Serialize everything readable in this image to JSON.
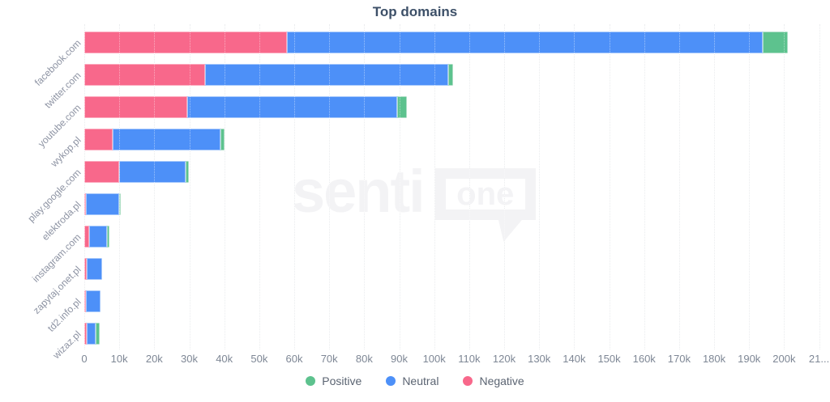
{
  "title": "Top domains",
  "watermark": {
    "senti": "senti",
    "one": "one"
  },
  "legend": [
    {
      "label": "Positive",
      "color": "#5dc28e"
    },
    {
      "label": "Neutral",
      "color": "#4d90f8"
    },
    {
      "label": "Negative",
      "color": "#f8688b"
    }
  ],
  "colors": {
    "positive": "#5dc28e",
    "neutral": "#4d90f8",
    "negative": "#f8688b",
    "title_text": "#3d5068",
    "axis_text": "#7e8795",
    "gridline": "#d9dce1"
  },
  "chart_data": {
    "type": "bar",
    "orientation": "horizontal",
    "stacked": true,
    "title": "Top domains",
    "categories": [
      "facebook.com",
      "twitter.com",
      "youtube.com",
      "wykop.pl",
      "play.google.com",
      "elektroda.pl",
      "instagram.com",
      "zapytaj.onet.pl",
      "td2.info.pl",
      "wizaz.pl"
    ],
    "series": [
      {
        "name": "Negative",
        "color": "#f8688b",
        "values": [
          58000,
          34500,
          29500,
          8000,
          10000,
          300,
          1500,
          800,
          100,
          600
        ]
      },
      {
        "name": "Neutral",
        "color": "#4d90f8",
        "values": [
          136000,
          69500,
          60000,
          31000,
          19000,
          9400,
          5000,
          4200,
          4200,
          2700
        ]
      },
      {
        "name": "Positive",
        "color": "#5dc28e",
        "values": [
          7000,
          1500,
          2800,
          1000,
          900,
          300,
          700,
          0,
          0,
          1200
        ]
      }
    ],
    "totals": [
      201000,
      105500,
      92300,
      40000,
      29900,
      10000,
      7200,
      5000,
      4300,
      4500
    ],
    "xlim": [
      0,
      210000
    ],
    "x_tick_step": 10000,
    "x_ticks": [
      "0",
      "10k",
      "20k",
      "30k",
      "40k",
      "50k",
      "60k",
      "70k",
      "80k",
      "90k",
      "100k",
      "110k",
      "120k",
      "130k",
      "140k",
      "150k",
      "160k",
      "170k",
      "180k",
      "190k",
      "200k",
      "21..."
    ],
    "grid": "dotted-vertical",
    "legend_position": "bottom",
    "legend_order": [
      "Positive",
      "Neutral",
      "Negative"
    ]
  }
}
